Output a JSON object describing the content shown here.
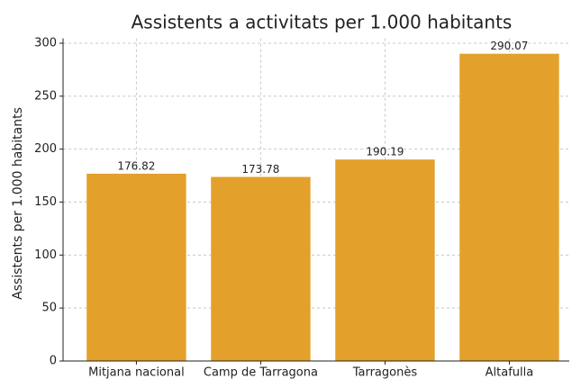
{
  "chart_data": {
    "type": "bar",
    "title": "Assistents a activitats per 1.000 habitants",
    "y_label": "Assistents per 1.000 habitants",
    "categories": [
      "Mitjana nacional",
      "Camp de Tarragona",
      "Tarragonès",
      "Altafulla"
    ],
    "values": [
      176.82,
      173.78,
      190.19,
      290.07
    ],
    "color": "#e3a02a",
    "ylim": [
      0,
      304.6
    ],
    "yticks": [
      0,
      50,
      100,
      150,
      200,
      250,
      300
    ],
    "grid": true
  }
}
